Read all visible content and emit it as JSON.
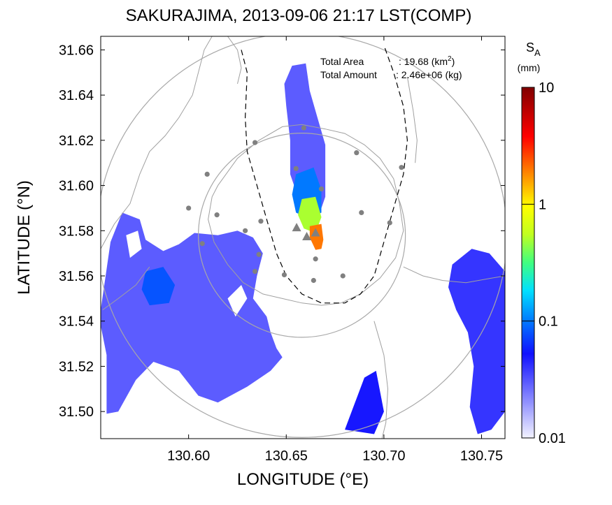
{
  "title": "SAKURAJIMA, 2013-09-06 21:17 LST(COMP)",
  "xlabel": "LONGITUDE (°E)",
  "ylabel": "LATITUDE (°N)",
  "annotation": {
    "area_label": "Total Area",
    "area_value": ": 19.68 (km",
    "area_sup": "2",
    "area_close": ")",
    "amount_label": "Total Amount",
    "amount_value": ": 2.46e+06 (kg)"
  },
  "colorbar": {
    "label_main": "S",
    "label_sub": "A",
    "label_unit": "(mm)",
    "ticks": [
      {
        "value": 10,
        "label": "10"
      },
      {
        "value": 1,
        "label": "1"
      },
      {
        "value": 0.1,
        "label": "0.1"
      },
      {
        "value": 0.01,
        "label": "0.01"
      }
    ],
    "min": 0.01,
    "max": 10,
    "scale": "log"
  },
  "colors": {
    "ash_high": "#800000",
    "ash_low": "#e6e6ff",
    "coast": "#a0a0a0",
    "range_ring": "#a8a8a8",
    "volcano_marker": "#808080",
    "station_marker": "#808080"
  },
  "chart_data": {
    "type": "heatmap",
    "xlim": [
      130.555,
      130.762
    ],
    "ylim": [
      31.488,
      31.666
    ],
    "xticks": [
      {
        "value": 130.6,
        "label": "130.60"
      },
      {
        "value": 130.65,
        "label": "130.65"
      },
      {
        "value": 130.7,
        "label": "130.70"
      },
      {
        "value": 130.75,
        "label": "130.75"
      }
    ],
    "yticks": [
      {
        "value": 31.5,
        "label": "31.50"
      },
      {
        "value": 31.52,
        "label": "31.52"
      },
      {
        "value": 31.54,
        "label": "31.54"
      },
      {
        "value": 31.56,
        "label": "31.56"
      },
      {
        "value": 31.58,
        "label": "31.58"
      },
      {
        "value": 31.6,
        "label": "31.60"
      },
      {
        "value": 31.62,
        "label": "31.62"
      },
      {
        "value": 31.64,
        "label": "31.64"
      },
      {
        "value": 31.66,
        "label": "31.66"
      }
    ],
    "volcano_markers": [
      {
        "lon": 130.6553,
        "lat": 31.5813
      },
      {
        "lon": 130.6605,
        "lat": 31.5773
      },
      {
        "lon": 130.665,
        "lat": 31.579
      }
    ],
    "stations": [
      {
        "lon": 130.6095,
        "lat": 31.605
      },
      {
        "lon": 130.634,
        "lat": 31.619
      },
      {
        "lon": 130.659,
        "lat": 31.6255
      },
      {
        "lon": 130.686,
        "lat": 31.6145
      },
      {
        "lon": 130.709,
        "lat": 31.608
      },
      {
        "lon": 130.655,
        "lat": 31.6075
      },
      {
        "lon": 130.668,
        "lat": 31.5985
      },
      {
        "lon": 130.6,
        "lat": 31.59
      },
      {
        "lon": 130.6145,
        "lat": 31.587
      },
      {
        "lon": 130.6885,
        "lat": 31.588
      },
      {
        "lon": 130.703,
        "lat": 31.5835
      },
      {
        "lon": 130.637,
        "lat": 31.5842
      },
      {
        "lon": 130.629,
        "lat": 31.58
      },
      {
        "lon": 130.607,
        "lat": 31.5743
      },
      {
        "lon": 130.636,
        "lat": 31.5695
      },
      {
        "lon": 130.665,
        "lat": 31.5675
      },
      {
        "lon": 130.634,
        "lat": 31.562
      },
      {
        "lon": 130.649,
        "lat": 31.5605
      },
      {
        "lon": 130.664,
        "lat": 31.558
      },
      {
        "lon": 130.679,
        "lat": 31.56
      }
    ],
    "ash_regions": [
      {
        "name": "plume-upper",
        "level": 0.03,
        "polygon": [
          [
            130.653,
            31.653
          ],
          [
            130.66,
            31.654
          ],
          [
            130.662,
            31.642
          ],
          [
            130.666,
            31.63
          ],
          [
            130.67,
            31.618
          ],
          [
            130.67,
            31.605
          ],
          [
            130.67,
            31.595
          ],
          [
            130.668,
            31.59
          ],
          [
            130.662,
            31.59
          ],
          [
            130.656,
            31.595
          ],
          [
            130.652,
            31.605
          ],
          [
            130.652,
            31.62
          ],
          [
            130.65,
            31.635
          ],
          [
            130.649,
            31.645
          ]
        ]
      },
      {
        "name": "plume-mid",
        "level": 0.1,
        "polygon": [
          [
            130.655,
            31.605
          ],
          [
            130.664,
            31.608
          ],
          [
            130.668,
            31.598
          ],
          [
            130.668,
            31.588
          ],
          [
            130.662,
            31.585
          ],
          [
            130.655,
            31.588
          ],
          [
            130.653,
            31.596
          ]
        ]
      },
      {
        "name": "plume-core",
        "level": 0.5,
        "polygon": [
          [
            130.658,
            31.594
          ],
          [
            130.665,
            31.595
          ],
          [
            130.668,
            31.586
          ],
          [
            130.665,
            31.579
          ],
          [
            130.659,
            31.581
          ],
          [
            130.656,
            31.587
          ]
        ]
      },
      {
        "name": "plume-hot",
        "level": 2,
        "polygon": [
          [
            130.662,
            31.582
          ],
          [
            130.668,
            31.583
          ],
          [
            130.669,
            31.576
          ],
          [
            130.668,
            31.572
          ],
          [
            130.665,
            31.5715
          ],
          [
            130.662,
            31.577
          ]
        ]
      },
      {
        "name": "southwest-echo",
        "level": 0.03,
        "polygon": [
          [
            130.555,
            31.545
          ],
          [
            130.56,
            31.575
          ],
          [
            130.566,
            31.588
          ],
          [
            130.575,
            31.585
          ],
          [
            130.578,
            31.576
          ],
          [
            130.587,
            31.571
          ],
          [
            130.595,
            31.574
          ],
          [
            130.603,
            31.579
          ],
          [
            130.615,
            31.578
          ],
          [
            130.625,
            31.58
          ],
          [
            130.633,
            31.577
          ],
          [
            130.638,
            31.57
          ],
          [
            130.635,
            31.56
          ],
          [
            130.633,
            31.55
          ],
          [
            130.64,
            31.542
          ],
          [
            130.642,
            31.535
          ],
          [
            130.645,
            31.528
          ],
          [
            130.648,
            31.524
          ],
          [
            130.642,
            31.518
          ],
          [
            130.63,
            31.511
          ],
          [
            130.615,
            31.504
          ],
          [
            130.605,
            31.507
          ],
          [
            130.595,
            31.518
          ],
          [
            130.582,
            31.522
          ],
          [
            130.573,
            31.514
          ],
          [
            130.564,
            31.5
          ],
          [
            130.558,
            31.499
          ],
          [
            130.558,
            31.525
          ],
          [
            130.555,
            31.538
          ]
        ]
      },
      {
        "name": "southwest-echo-strong",
        "level": 0.08,
        "polygon": [
          [
            130.578,
            31.562
          ],
          [
            130.587,
            31.564
          ],
          [
            130.593,
            31.556
          ],
          [
            130.59,
            31.548
          ],
          [
            130.58,
            31.547
          ],
          [
            130.576,
            31.554
          ]
        ]
      },
      {
        "name": "east-echo",
        "level": 0.04,
        "polygon": [
          [
            130.735,
            31.565
          ],
          [
            130.745,
            31.572
          ],
          [
            130.754,
            31.57
          ],
          [
            130.762,
            31.562
          ],
          [
            130.762,
            31.5
          ],
          [
            130.755,
            31.492
          ],
          [
            130.748,
            31.49
          ],
          [
            130.744,
            31.502
          ],
          [
            130.746,
            31.52
          ],
          [
            130.743,
            31.535
          ],
          [
            130.737,
            31.545
          ],
          [
            130.733,
            31.555
          ]
        ]
      },
      {
        "name": "south-fan",
        "level": 0.05,
        "polygon": [
          [
            130.68,
            31.492
          ],
          [
            130.69,
            31.515
          ],
          [
            130.696,
            31.518
          ],
          [
            130.7,
            31.5
          ],
          [
            130.695,
            31.49
          ]
        ]
      }
    ],
    "clear_regions": [
      {
        "name": "harbor-gap-1",
        "polygon": [
          [
            130.62,
            31.55
          ],
          [
            130.627,
            31.556
          ],
          [
            130.63,
            31.55
          ],
          [
            130.624,
            31.542
          ]
        ]
      },
      {
        "name": "harbor-gap-2",
        "polygon": [
          [
            130.568,
            31.578
          ],
          [
            130.574,
            31.58
          ],
          [
            130.576,
            31.572
          ],
          [
            130.57,
            31.568
          ]
        ]
      }
    ],
    "coastlines": [
      [
        [
          130.555,
          31.572
        ],
        [
          130.562,
          31.583
        ],
        [
          130.57,
          31.592
        ],
        [
          130.575,
          31.605
        ],
        [
          130.58,
          31.615
        ],
        [
          130.588,
          31.622
        ],
        [
          130.595,
          31.63
        ],
        [
          130.602,
          31.64
        ],
        [
          130.605,
          31.65
        ],
        [
          130.608,
          31.66
        ],
        [
          130.612,
          31.666
        ]
      ],
      [
        [
          130.62,
          31.666
        ],
        [
          130.625,
          31.66
        ],
        [
          130.627,
          31.652
        ],
        [
          130.625,
          31.645
        ]
      ],
      [
        [
          130.615,
          31.6
        ],
        [
          130.625,
          31.612
        ],
        [
          130.636,
          31.62
        ],
        [
          130.648,
          31.626
        ],
        [
          130.658,
          31.627
        ],
        [
          130.67,
          31.625
        ],
        [
          130.68,
          31.623
        ],
        [
          130.69,
          31.618
        ],
        [
          130.698,
          31.612
        ],
        [
          130.705,
          31.603
        ],
        [
          130.708,
          31.592
        ],
        [
          130.71,
          31.58
        ],
        [
          130.706,
          31.568
        ],
        [
          130.698,
          31.559
        ],
        [
          130.688,
          31.552
        ],
        [
          130.678,
          31.548
        ],
        [
          130.668,
          31.547
        ],
        [
          130.658,
          31.548
        ],
        [
          130.648,
          31.55
        ],
        [
          130.638,
          31.552
        ],
        [
          130.628,
          31.557
        ],
        [
          130.62,
          31.565
        ],
        [
          130.613,
          31.575
        ],
        [
          130.61,
          31.585
        ],
        [
          130.612,
          31.595
        ],
        [
          130.615,
          31.6
        ]
      ],
      [
        [
          130.712,
          31.648
        ],
        [
          130.715,
          31.633
        ],
        [
          130.717,
          31.62
        ],
        [
          130.716,
          31.61
        ]
      ],
      [
        [
          130.71,
          31.564
        ],
        [
          130.72,
          31.56
        ],
        [
          130.73,
          31.558
        ],
        [
          130.742,
          31.557
        ],
        [
          130.755,
          31.559
        ],
        [
          130.762,
          31.56
        ]
      ],
      [
        [
          130.695,
          31.54
        ],
        [
          130.7,
          31.525
        ],
        [
          130.702,
          31.51
        ],
        [
          130.701,
          31.495
        ],
        [
          130.699,
          31.488
        ]
      ],
      [
        [
          130.556,
          31.545
        ],
        [
          130.564,
          31.55
        ],
        [
          130.573,
          31.556
        ],
        [
          130.58,
          31.564
        ]
      ]
    ],
    "dashed_boundary": [
      [
        130.627,
        31.66
      ],
      [
        130.63,
        31.65
      ],
      [
        130.629,
        31.63
      ],
      [
        130.63,
        31.615
      ],
      [
        130.635,
        31.6
      ],
      [
        130.64,
        31.585
      ],
      [
        130.645,
        31.57
      ],
      [
        130.65,
        31.56
      ],
      [
        130.658,
        31.552
      ],
      [
        130.668,
        31.548
      ],
      [
        130.68,
        31.548
      ],
      [
        130.688,
        31.552
      ],
      [
        130.695,
        31.56
      ],
      [
        130.7,
        31.575
      ],
      [
        130.705,
        31.59
      ],
      [
        130.71,
        31.605
      ],
      [
        130.712,
        31.62
      ],
      [
        130.71,
        31.635
      ],
      [
        130.705,
        31.65
      ],
      [
        130.7,
        31.662
      ]
    ],
    "range_rings": [
      {
        "center_lon": 130.658,
        "center_lat": 31.578,
        "radius_deg": 0.105
      },
      {
        "center_lon": 130.658,
        "center_lat": 31.578,
        "radius_deg": 0.053
      }
    ]
  }
}
